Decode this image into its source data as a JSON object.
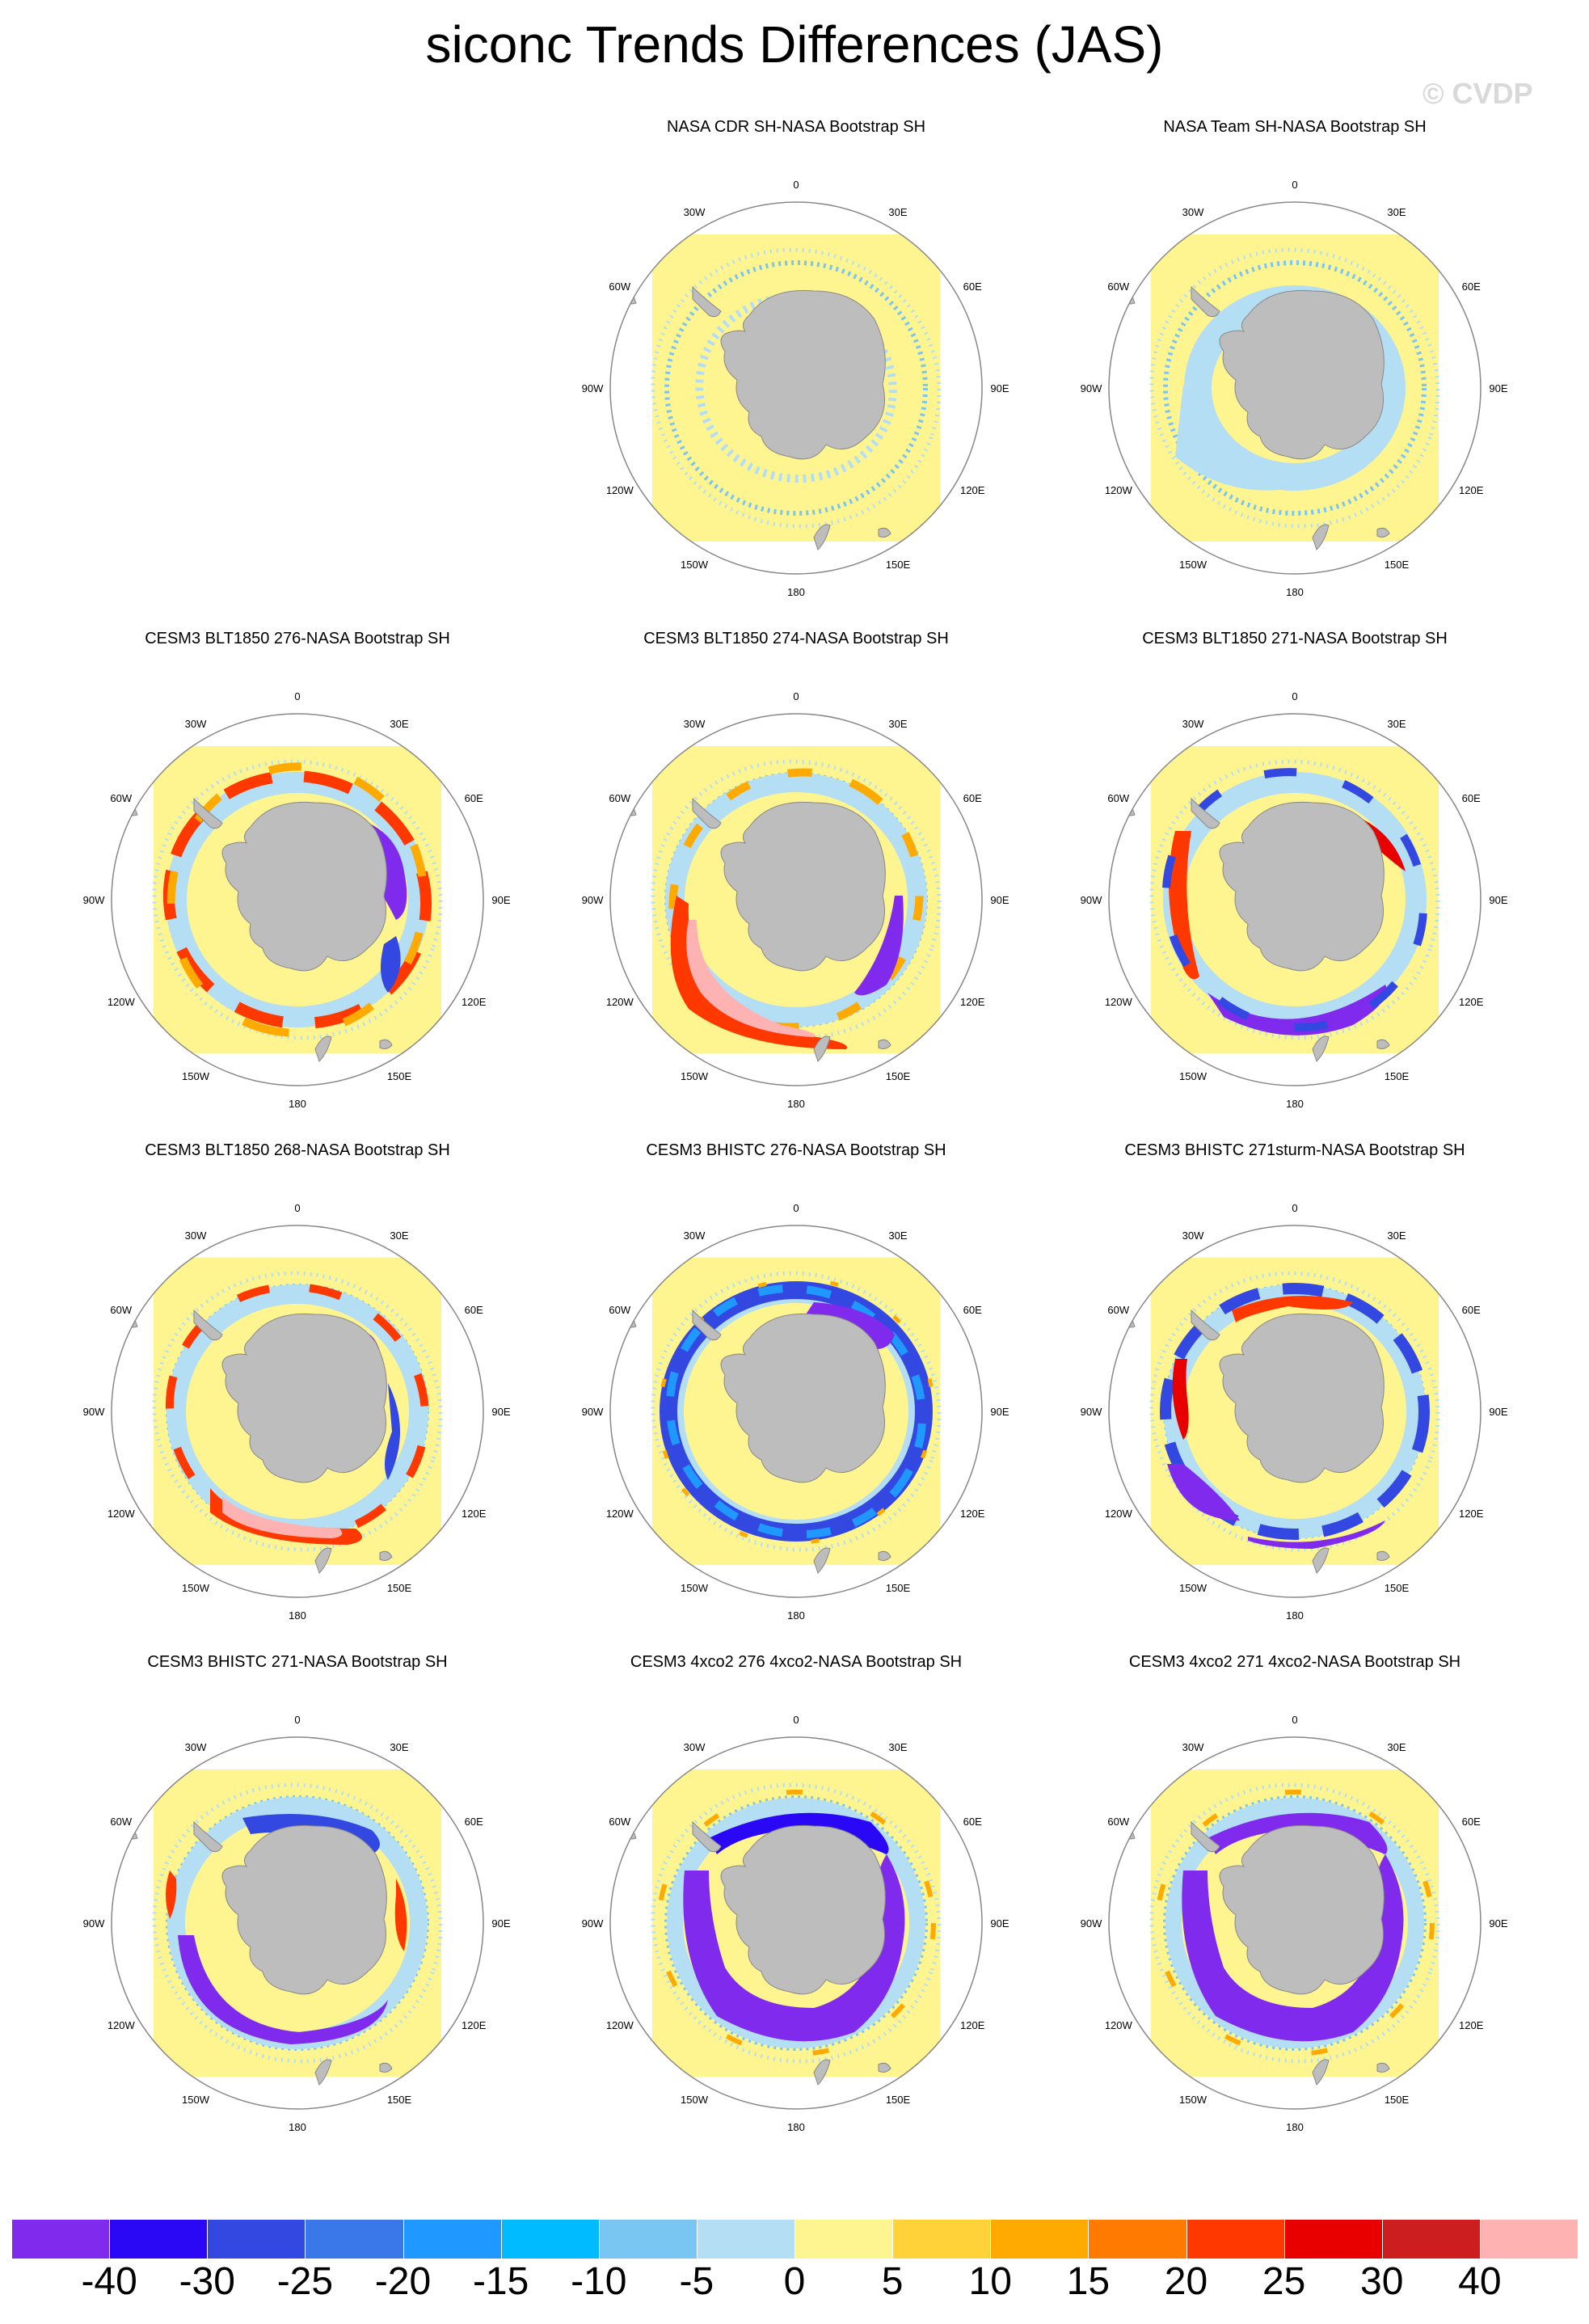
{
  "title": "siconc Trends Differences (JAS)",
  "watermark": "© CVDP",
  "degree_labels": {
    "top": "0",
    "bottom": "180",
    "left": "90W",
    "right": "90E",
    "upper_left_1": "30W",
    "upper_left_2": "60W",
    "upper_right_1": "30E",
    "upper_right_2": "60E",
    "lower_left_1": "120W",
    "lower_left_2": "150W",
    "lower_right_1": "120E",
    "lower_right_2": "150E"
  },
  "panels": [
    {
      "title": "NASA CDR SH-NASA Bootstrap SH",
      "pattern": "noise"
    },
    {
      "title": "NASA Team SH-NASA Bootstrap SH",
      "pattern": "lightblue"
    },
    {
      "title": "CESM3 BLT1850 276-NASA Bootstrap SH",
      "pattern": "mixed_east_blue"
    },
    {
      "title": "CESM3 BLT1850 274-NASA Bootstrap SH",
      "pattern": "pink_southwest"
    },
    {
      "title": "CESM3 BLT1850 271-NASA Bootstrap SH",
      "pattern": "red_west_blue_south"
    },
    {
      "title": "CESM3 BLT1850 268-NASA Bootstrap SH",
      "pattern": "pink_south"
    },
    {
      "title": "CESM3 BHISTC 276-NASA Bootstrap SH",
      "pattern": "blue_ring"
    },
    {
      "title": "CESM3 BHISTC 271sturm-NASA Bootstrap SH",
      "pattern": "red_north_blue_south"
    },
    {
      "title": "CESM3 BHISTC 271-NASA Bootstrap SH",
      "pattern": "blue_southwest"
    },
    {
      "title": "CESM3 4xco2 276 4xco2-NASA Bootstrap SH",
      "pattern": "purple_full"
    },
    {
      "title": "CESM3 4xco2 271 4xco2-NASA Bootstrap SH",
      "pattern": "purple_full2"
    }
  ],
  "colorbar": {
    "colors": [
      "#7f2aed",
      "#2a08f5",
      "#3348e0",
      "#3a78ea",
      "#1f98ff",
      "#00bbff",
      "#7ac6f2",
      "#b4def4",
      "#fff590",
      "#ffd23a",
      "#ffaa00",
      "#ff7a00",
      "#ff3800",
      "#e80000",
      "#cc1e1e",
      "#ffb2b2"
    ],
    "labels": [
      "-40",
      "-30",
      "-25",
      "-20",
      "-15",
      "-10",
      "-5",
      "0",
      "5",
      "10",
      "15",
      "20",
      "25",
      "30",
      "40"
    ]
  }
}
